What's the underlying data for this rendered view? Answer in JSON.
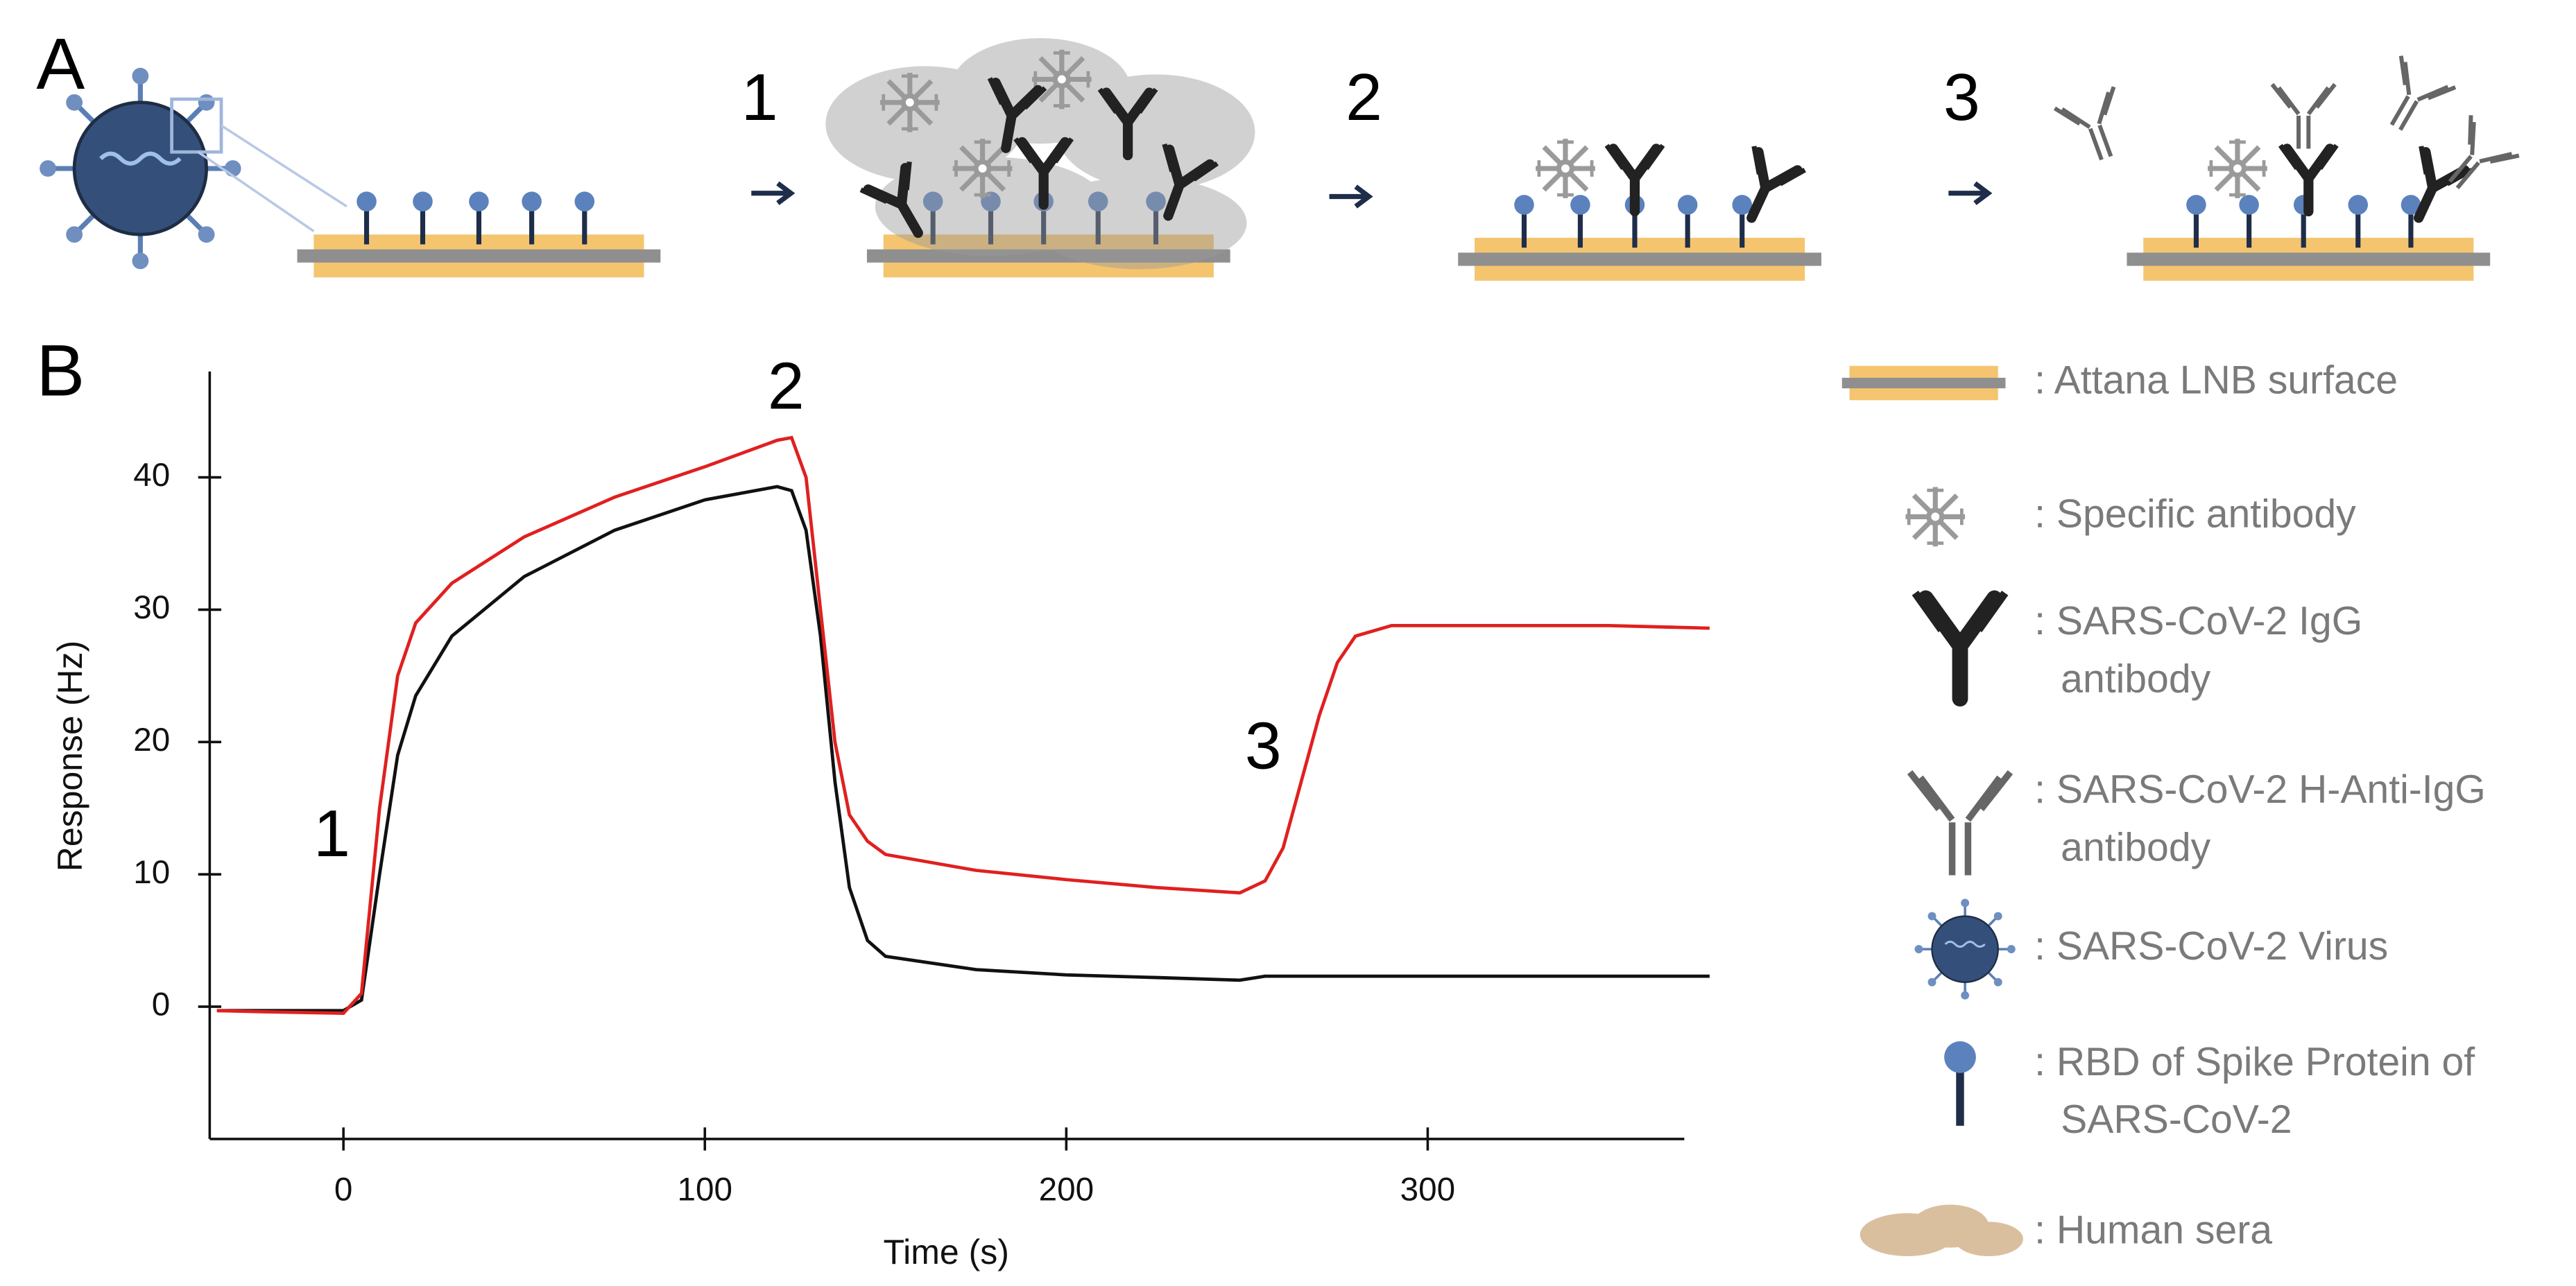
{
  "chart_data": {
    "type": "line",
    "panel_labels": [
      "A",
      "B"
    ],
    "steps": [
      "1",
      "2",
      "3"
    ],
    "xlabel": "Time (s)",
    "ylabel": "Response (Hz)",
    "x": [
      -35,
      -20,
      0,
      5,
      10,
      15,
      20,
      30,
      50,
      75,
      100,
      120,
      124,
      128,
      132,
      136,
      140,
      145,
      150,
      175,
      200,
      225,
      248,
      255,
      260,
      265,
      270,
      275,
      280,
      290,
      320,
      350,
      378
    ],
    "series": [
      {
        "color": "#111111",
        "values": [
          -0.3,
          -0.3,
          -0.3,
          0.5,
          10,
          19,
          23.5,
          28,
          32.5,
          36,
          38.3,
          39.3,
          39,
          36,
          28,
          17,
          9,
          5,
          3.8,
          2.8,
          2.4,
          2.2,
          2.0,
          2.3,
          2.3,
          2.3,
          2.3,
          2.3,
          2.3,
          2.3,
          2.3,
          2.3,
          2.3
        ]
      },
      {
        "color": "#e02020",
        "values": [
          -0.3,
          -0.4,
          -0.5,
          1,
          15,
          25,
          29,
          32,
          35.5,
          38.5,
          40.8,
          42.8,
          43,
          40,
          30,
          20,
          14.5,
          12.5,
          11.5,
          10.3,
          9.6,
          9,
          8.6,
          9.5,
          12,
          17,
          22,
          26,
          28,
          28.8,
          28.8,
          28.8,
          28.6
        ]
      }
    ],
    "xlim": [
      -37,
      371
    ],
    "ylim": [
      -10,
      48
    ],
    "xticks": [
      0,
      100,
      200,
      300
    ],
    "yticks": [
      0,
      10,
      20,
      30,
      40
    ],
    "grid": false,
    "annotations": [
      "1",
      "2",
      "3"
    ],
    "key_items": [
      [
        ": Attana LNB surface"
      ],
      [
        ": Specific antibody"
      ],
      [
        ": SARS-CoV-2 IgG",
        "antibody"
      ],
      [
        ": SARS-CoV-2 H-Anti-IgG",
        "antibody"
      ],
      [
        ": SARS-CoV-2 Virus"
      ],
      [
        ": RBD of Spike Protein of",
        "SARS-CoV-2"
      ],
      [
        ": Human sera"
      ]
    ]
  }
}
